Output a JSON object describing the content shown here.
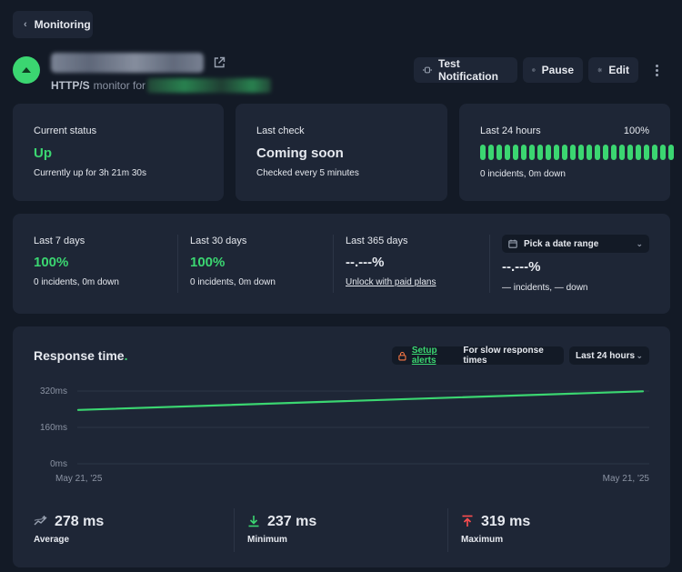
{
  "nav": {
    "back_label": "Monitoring"
  },
  "monitor": {
    "type_label": "HTTP/S",
    "subtitle_suffix": "monitor for"
  },
  "header_actions": {
    "test_notification": "Test Notification",
    "pause": "Pause",
    "edit": "Edit"
  },
  "current_status": {
    "label": "Current status",
    "value": "Up",
    "detail": "Currently up for 3h 21m 30s"
  },
  "last_check": {
    "label": "Last check",
    "value": "Coming soon",
    "detail": "Checked every 5 minutes"
  },
  "last_24h": {
    "label": "Last 24 hours",
    "percent": "100%",
    "detail": "0 incidents, 0m down",
    "bar_count": 24,
    "bar_color": "#3bd671"
  },
  "uptime_periods": [
    {
      "label": "Last 7 days",
      "value": "100%",
      "detail": "0 incidents, 0m down"
    },
    {
      "label": "Last 30 days",
      "value": "100%",
      "detail": "0 incidents, 0m down"
    },
    {
      "label": "Last 365 days",
      "value": "--.---%",
      "link": "Unlock with paid plans"
    }
  ],
  "custom_range": {
    "picker_label": "Pick a date range",
    "value": "--.---%",
    "detail": "— incidents, — down"
  },
  "response_time": {
    "title": "Response time",
    "title_dot": ".",
    "alert_link": "Setup alerts",
    "alert_suffix": "For slow response times",
    "range": "Last 24 hours"
  },
  "chart_data": {
    "type": "line",
    "x": [
      "May 21, '25",
      "May 21, '25"
    ],
    "x_tick_labels": [
      "May 21, '25",
      "May 21, '25"
    ],
    "series": [
      {
        "values": [
          237,
          319
        ]
      }
    ],
    "y_tick_labels": [
      "320ms",
      "160ms",
      "0ms"
    ],
    "ylim": [
      0,
      320
    ],
    "grid": true,
    "line_color": "#3bd671"
  },
  "stats": {
    "average": {
      "value": "278 ms",
      "label": "Average"
    },
    "minimum": {
      "value": "237 ms",
      "label": "Minimum"
    },
    "maximum": {
      "value": "319 ms",
      "label": "Maximum"
    }
  },
  "colors": {
    "accent": "#3bd671",
    "danger": "#ff4d4f",
    "alert_icon": "#ff7a45",
    "card": "#1e2636",
    "background": "#131a26"
  },
  "icons": [
    "chevron-left-icon",
    "arrow-up-icon",
    "external-link-icon",
    "notification-icon",
    "pause-icon",
    "gear-icon",
    "more-vertical-icon",
    "calendar-icon",
    "lock-icon",
    "chevron-down-icon",
    "average-icon",
    "arrow-down-icon",
    "arrow-up-bar-icon"
  ]
}
